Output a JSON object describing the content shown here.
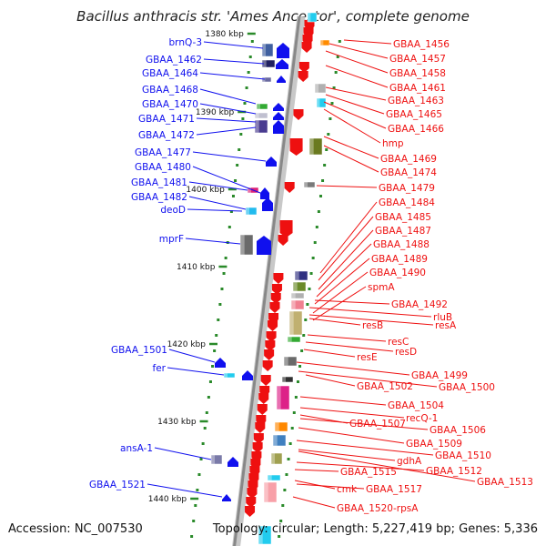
{
  "title": "Bacillus anthracis str. 'Ames Ancestor', complete genome",
  "accession": "Accession: NC_007530",
  "topology": "Topology: circular; Length: 5,227,419 bp; Genes: 5,336",
  "colors": {
    "left_strand": "#1010ee",
    "right_strand": "#ee1010",
    "backbone": "#888888",
    "ticks": "#2a8a2a"
  },
  "scale": {
    "unit": "kbp",
    "major_ticks": [
      {
        "label": "1380 kbp"
      },
      {
        "label": "1390 kbp"
      },
      {
        "label": "1400 kbp"
      },
      {
        "label": "1410 kbp"
      },
      {
        "label": "1420 kbp"
      },
      {
        "label": "1430 kbp"
      },
      {
        "label": "1440 kbp"
      }
    ]
  },
  "left_labels": [
    "brnQ-3",
    "GBAA_1462",
    "GBAA_1464",
    "GBAA_1468",
    "GBAA_1470",
    "GBAA_1471",
    "GBAA_1472",
    "GBAA_1477",
    "GBAA_1480",
    "GBAA_1481",
    "GBAA_1482",
    "deoD",
    "mprF",
    "GBAA_1501",
    "fer",
    "ansA-1",
    "GBAA_1521"
  ],
  "right_labels": [
    "GBAA_1456",
    "GBAA_1457",
    "GBAA_1458",
    "GBAA_1461",
    "GBAA_1463",
    "GBAA_1465",
    "GBAA_1466",
    "hmp",
    "GBAA_1469",
    "GBAA_1474",
    "GBAA_1479",
    "GBAA_1484",
    "GBAA_1485",
    "GBAA_1487",
    "GBAA_1488",
    "GBAA_1489",
    "GBAA_1490",
    "spmA",
    "GBAA_1492",
    "rluB",
    "resB",
    "resA",
    "resC",
    "resD",
    "resE",
    "GBAA_1499",
    "GBAA_1502",
    "GBAA_1500",
    "GBAA_1504",
    "recQ-1",
    "GBAA_1507",
    "GBAA_1506",
    "GBAA_1509",
    "GBAA_1510",
    "gdhA",
    "GBAA_1512",
    "GBAA_1515",
    "GBAA_1513",
    "cmk",
    "GBAA_1517",
    "GBAA_1520-rpsA"
  ]
}
